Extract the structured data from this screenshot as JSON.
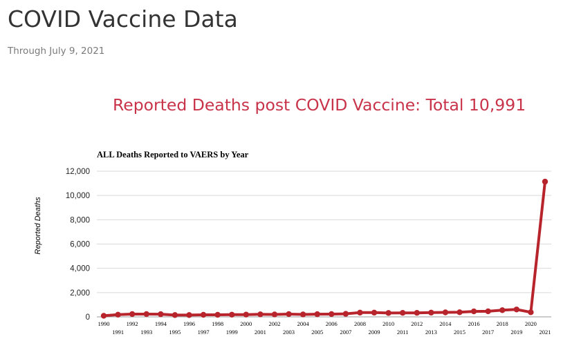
{
  "page": {
    "title": "COVID Vaccine Data",
    "subtitle": "Through July 9, 2021",
    "headline": "Reported Deaths post COVID Vaccine: Total 10,991"
  },
  "colors": {
    "headline": "#c8334a",
    "series_line": "#b8242c",
    "gridline": "#d9d9d9"
  },
  "chart_data": {
    "type": "line",
    "title": "ALL Deaths Reported to VAERS by Year",
    "xlabel": "",
    "ylabel": "Reported Deaths",
    "ylim": [
      0,
      12000
    ],
    "yticks": [
      0,
      2000,
      4000,
      6000,
      8000,
      10000,
      12000
    ],
    "ytick_labels": [
      "0",
      "2,000",
      "4,000",
      "6,000",
      "8,000",
      "10,000",
      "12,000"
    ],
    "grid": true,
    "legend": "none",
    "categories": [
      "1990",
      "1991",
      "1992",
      "1993",
      "1994",
      "1995",
      "1996",
      "1997",
      "1998",
      "1999",
      "2000",
      "2001",
      "2002",
      "2003",
      "2004",
      "2005",
      "2006",
      "2007",
      "2008",
      "2009",
      "2010",
      "2011",
      "2012",
      "2013",
      "2014",
      "2015",
      "2016",
      "2017",
      "2018",
      "2019",
      "2020",
      "2021"
    ],
    "series": [
      {
        "values": [
          90,
          180,
          230,
          230,
          220,
          150,
          150,
          170,
          170,
          180,
          190,
          210,
          200,
          230,
          200,
          220,
          230,
          250,
          350,
          350,
          320,
          330,
          330,
          350,
          370,
          380,
          450,
          460,
          550,
          610,
          380,
          11140
        ]
      }
    ]
  }
}
